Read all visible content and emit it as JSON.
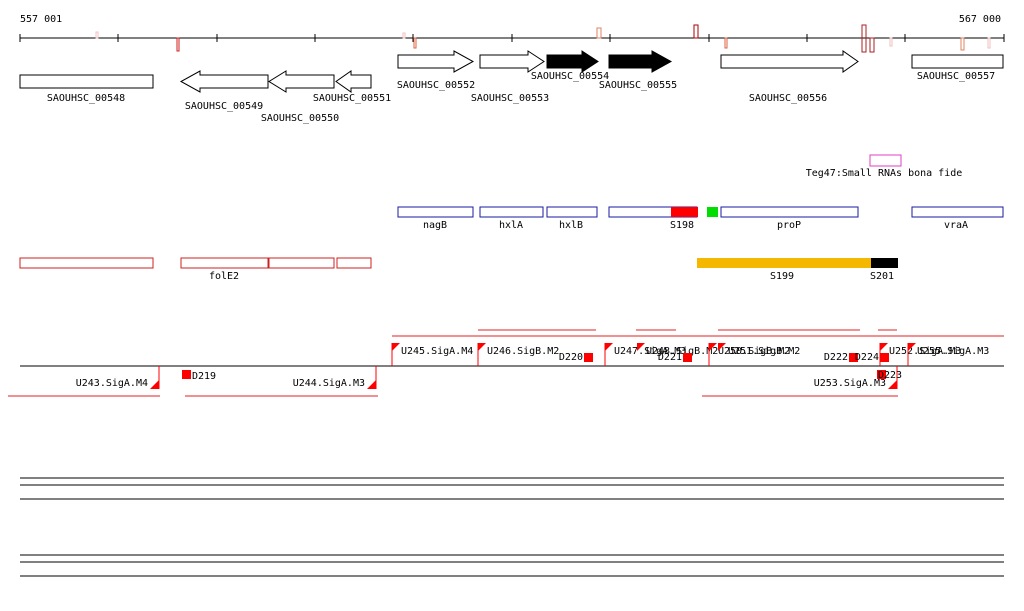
{
  "ruler": {
    "start_label": "557 001",
    "end_label": "567 000"
  },
  "genes": [
    {
      "label": "SAOUHSC_00548",
      "strand": "none",
      "filled": false
    },
    {
      "label": "SAOUHSC_00549",
      "strand": "rev",
      "filled": false
    },
    {
      "label": "SAOUHSC_00550",
      "strand": "rev",
      "filled": false
    },
    {
      "label": "SAOUHSC_00551",
      "strand": "rev",
      "filled": false
    },
    {
      "label": "SAOUHSC_00552",
      "strand": "fwd",
      "filled": false
    },
    {
      "label": "SAOUHSC_00553",
      "strand": "fwd",
      "filled": false
    },
    {
      "label": "SAOUHSC_00554",
      "strand": "fwd",
      "filled": true
    },
    {
      "label": "SAOUHSC_00555",
      "strand": "fwd",
      "filled": true
    },
    {
      "label": "SAOUHSC_00556",
      "strand": "fwd",
      "filled": false
    },
    {
      "label": "SAOUHSC_00557",
      "strand": "none",
      "filled": false
    }
  ],
  "small_rna": {
    "label": "Teg47:Small RNAs bona fide",
    "color": "#e040c0"
  },
  "blue_track": [
    {
      "label": "nagB"
    },
    {
      "label": "hxlA"
    },
    {
      "label": "hxlB"
    },
    {
      "label": ""
    },
    {
      "label": "proP"
    },
    {
      "label": "vraA"
    }
  ],
  "blue_track_color": "#1a1aa0",
  "feature_S198": {
    "label": "S198",
    "color": "#ff0000"
  },
  "feature_green": {
    "color": "#00dd00"
  },
  "red_track": [
    {
      "label": ""
    },
    {
      "label": "folE2"
    },
    {
      "label": ""
    },
    {
      "label": ""
    }
  ],
  "red_track_color": "#cc2020",
  "feature_S199": {
    "label": "S199",
    "color": "#f5b800"
  },
  "feature_S201": {
    "label": "S201",
    "color": "#000000"
  },
  "upper_units": [
    {
      "label": "U245.SigA.M4"
    },
    {
      "label": "U246.SigB.M2"
    },
    {
      "label": "D220"
    },
    {
      "label": "U247.SigA.M3"
    },
    {
      "label": "U248.SigB.M2"
    },
    {
      "label": "D221"
    },
    {
      "label": "U250.SigB.M2"
    },
    {
      "label": "U251.SigB.M2"
    },
    {
      "label": "D222"
    },
    {
      "label": "D224"
    },
    {
      "label": "U252.SigA.M3"
    },
    {
      "label": "U255.SigA.M3"
    }
  ],
  "lower_units": [
    {
      "label": "U243.SigA.M4"
    },
    {
      "label": "D219"
    },
    {
      "label": "U244.SigA.M3"
    },
    {
      "label": "U253.SigA.M3"
    },
    {
      "label": "D223"
    }
  ],
  "tiling_color": "#ff0000"
}
